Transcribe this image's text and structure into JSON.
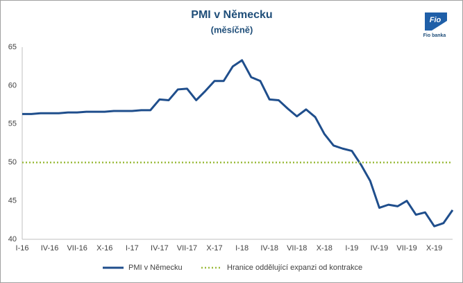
{
  "chart_data": {
    "type": "line",
    "title": "PMI v Německu",
    "subtitle": "(měsíčně)",
    "logo": "Fio banka",
    "logo_mark": "Fio",
    "categories": [
      "I-16",
      null,
      null,
      "IV-16",
      null,
      null,
      "VII-16",
      null,
      null,
      "X-16",
      null,
      null,
      "I-17",
      null,
      null,
      "IV-17",
      null,
      null,
      "VII-17",
      null,
      null,
      "X-17",
      null,
      null,
      "I-18",
      null,
      null,
      "IV-18",
      null,
      null,
      "VII-18",
      null,
      null,
      "X-18",
      null,
      null,
      "I-19",
      null,
      null,
      "IV-19",
      null,
      null,
      "VII-19",
      null,
      null,
      "X-19",
      null,
      null
    ],
    "series": [
      {
        "name": "PMI v Německu",
        "color": "#1f4e8c",
        "style": "solid",
        "values": [
          56.3,
          56.3,
          56.4,
          56.4,
          56.4,
          56.5,
          56.5,
          56.6,
          56.6,
          56.6,
          56.7,
          56.7,
          56.7,
          56.8,
          56.8,
          58.2,
          58.1,
          59.5,
          59.6,
          58.1,
          59.3,
          60.6,
          60.6,
          62.5,
          63.3,
          61.1,
          60.6,
          58.2,
          58.1,
          57.0,
          56.0,
          56.9,
          55.9,
          53.7,
          52.2,
          51.8,
          51.5,
          49.7,
          47.6,
          44.1,
          44.5,
          44.3,
          45.0,
          43.2,
          43.5,
          41.7,
          42.1,
          43.8
        ]
      },
      {
        "name": "Hranice oddělující expanzi od kontrakce",
        "color": "#9bbb3c",
        "style": "dotted",
        "values": [
          50,
          50,
          50,
          50,
          50,
          50,
          50,
          50,
          50,
          50,
          50,
          50,
          50,
          50,
          50,
          50,
          50,
          50,
          50,
          50,
          50,
          50,
          50,
          50,
          50,
          50,
          50,
          50,
          50,
          50,
          50,
          50,
          50,
          50,
          50,
          50,
          50,
          50,
          50,
          50,
          50,
          50,
          50,
          50,
          50,
          50,
          50,
          50
        ]
      }
    ],
    "ylim": [
      40,
      65
    ],
    "yticks": [
      40,
      45,
      50,
      55,
      60,
      65
    ],
    "grid": false,
    "legend": "bottom"
  }
}
